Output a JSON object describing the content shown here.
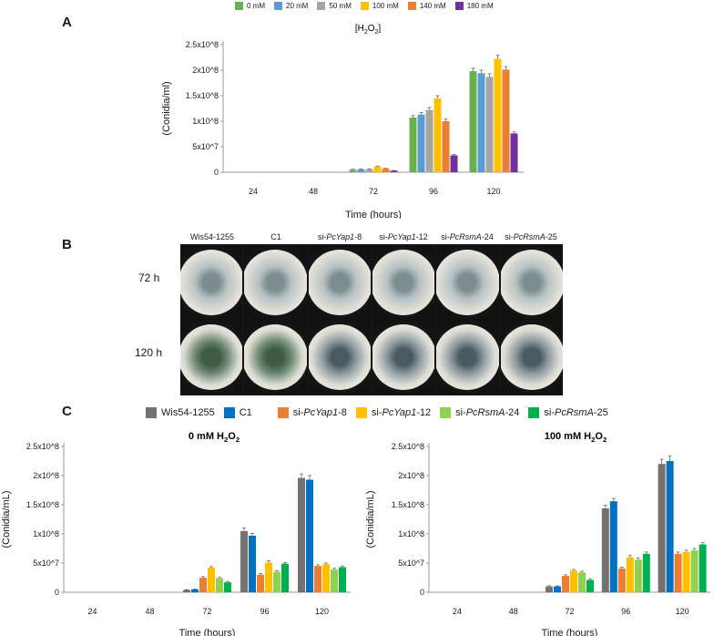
{
  "panels": {
    "a": "A",
    "b": "B",
    "c": "C"
  },
  "legendA": [
    {
      "label": "0 mM",
      "color": "#6ab04c"
    },
    {
      "label": "20 mM",
      "color": "#5b9bd5"
    },
    {
      "label": "50 mM",
      "color": "#a5a5a5"
    },
    {
      "label": "100 mM",
      "color": "#ffc000"
    },
    {
      "label": "140 mM",
      "color": "#ed7d31"
    },
    {
      "label": "180 mM",
      "color": "#7030a0"
    }
  ],
  "legendC": [
    {
      "label": "Wis54-1255",
      "color": "#767171"
    },
    {
      "label": "C1",
      "color": "#0070c0"
    },
    {
      "label": "si-PcYap1-8",
      "color": "#ed7d31"
    },
    {
      "label": "si-PcYap1-12",
      "color": "#ffc000"
    },
    {
      "label": "si-PcRsmA-24",
      "color": "#92d050"
    },
    {
      "label": "si-PcRsmA-25",
      "color": "#00b050"
    }
  ],
  "photos": {
    "strains": [
      "Wis54-1255",
      "C1",
      "si-PcYap1-8",
      "si-PcYap1-12",
      "si-PcRsmA-24",
      "si-PcRsmA-25"
    ],
    "rows": [
      "72 h",
      "120 h"
    ]
  },
  "chart_data": [
    {
      "type": "bar",
      "title": "[H2O2]",
      "xlabel": "Time (hours)",
      "ylabel": "(Conidia/ml)",
      "categories": [
        "24",
        "48",
        "72",
        "96",
        "120"
      ],
      "yticks": [
        "0",
        "5x10^7",
        "1x10^8",
        "1.5x10^8",
        "2x10^8",
        "2.5x10^8"
      ],
      "ylim": [
        0,
        250000000
      ],
      "series": [
        {
          "name": "0 mM",
          "values": [
            0,
            0,
            5000000,
            107000000,
            198000000
          ],
          "err": [
            0,
            0,
            800000,
            4000000,
            6000000
          ]
        },
        {
          "name": "20 mM",
          "values": [
            0,
            0,
            5500000,
            113000000,
            194000000
          ],
          "err": [
            0,
            0,
            800000,
            4000000,
            6000000
          ]
        },
        {
          "name": "50 mM",
          "values": [
            0,
            0,
            6000000,
            122000000,
            187000000
          ],
          "err": [
            0,
            0,
            800000,
            5000000,
            6000000
          ]
        },
        {
          "name": "100 mM",
          "values": [
            0,
            0,
            11000000,
            145000000,
            222000000
          ],
          "err": [
            0,
            0,
            1000000,
            5000000,
            7000000
          ]
        },
        {
          "name": "140 mM",
          "values": [
            0,
            0,
            7000000,
            100000000,
            201000000
          ],
          "err": [
            0,
            0,
            800000,
            4000000,
            6000000
          ]
        },
        {
          "name": "180 mM",
          "values": [
            0,
            0,
            3000000,
            33000000,
            76000000
          ],
          "err": [
            0,
            0,
            500000,
            2000000,
            3000000
          ]
        }
      ]
    },
    {
      "type": "bar",
      "title": "0 mM H2O2",
      "xlabel": "Time (hours)",
      "ylabel": "(Conidia/mL)",
      "categories": [
        "24",
        "48",
        "72",
        "96",
        "120"
      ],
      "yticks": [
        "0",
        "5x10^7",
        "1x10^8",
        "1.5x10^8",
        "2x10^8",
        "2.5x10^8"
      ],
      "ylim": [
        0,
        250000000
      ],
      "series": [
        {
          "name": "Wis54-1255",
          "values": [
            0,
            0,
            4000000,
            105000000,
            196000000
          ],
          "err": [
            0,
            0,
            500000,
            5000000,
            7000000
          ]
        },
        {
          "name": "C1",
          "values": [
            0,
            0,
            5000000,
            97000000,
            193000000
          ],
          "err": [
            0,
            0,
            500000,
            4000000,
            7000000
          ]
        },
        {
          "name": "si-PcYap1-8",
          "values": [
            0,
            0,
            25000000,
            30000000,
            45000000
          ],
          "err": [
            0,
            0,
            2000000,
            2000000,
            2000000
          ]
        },
        {
          "name": "si-PcYap1-12",
          "values": [
            0,
            0,
            42000000,
            51000000,
            48000000
          ],
          "err": [
            0,
            0,
            2000000,
            3000000,
            2000000
          ]
        },
        {
          "name": "si-PcRsmA-24",
          "values": [
            0,
            0,
            24000000,
            35000000,
            39000000
          ],
          "err": [
            0,
            0,
            1500000,
            2000000,
            2000000
          ]
        },
        {
          "name": "si-PcRsmA-25",
          "values": [
            0,
            0,
            17000000,
            49000000,
            43000000
          ],
          "err": [
            0,
            0,
            1500000,
            2000000,
            2000000
          ]
        }
      ]
    },
    {
      "type": "bar",
      "title": "100 mM H2O2",
      "xlabel": "Time (hours)",
      "ylabel": "(Conidia/mL)",
      "categories": [
        "24",
        "48",
        "72",
        "96",
        "120"
      ],
      "yticks": [
        "0",
        "5x10^7",
        "1x10^8",
        "1.5x10^8",
        "2x10^8",
        "2.5x10^8"
      ],
      "ylim": [
        0,
        250000000
      ],
      "series": [
        {
          "name": "Wis54-1255",
          "values": [
            0,
            0,
            10000000,
            144000000,
            220000000
          ],
          "err": [
            0,
            0,
            1000000,
            5000000,
            8000000
          ]
        },
        {
          "name": "C1",
          "values": [
            0,
            0,
            10000000,
            156000000,
            225000000
          ],
          "err": [
            0,
            0,
            1000000,
            5000000,
            9000000
          ]
        },
        {
          "name": "si-PcYap1-8",
          "values": [
            0,
            0,
            28000000,
            41000000,
            66000000
          ],
          "err": [
            0,
            0,
            2000000,
            2000000,
            3000000
          ]
        },
        {
          "name": "si-PcYap1-12",
          "values": [
            0,
            0,
            37000000,
            60000000,
            69000000
          ],
          "err": [
            0,
            0,
            2000000,
            3000000,
            3000000
          ]
        },
        {
          "name": "si-PcRsmA-24",
          "values": [
            0,
            0,
            34000000,
            56000000,
            72000000
          ],
          "err": [
            0,
            0,
            2000000,
            3000000,
            3000000
          ]
        },
        {
          "name": "si-PcRsmA-25",
          "values": [
            0,
            0,
            21000000,
            66000000,
            82000000
          ],
          "err": [
            0,
            0,
            1500000,
            3000000,
            3000000
          ]
        }
      ]
    }
  ]
}
